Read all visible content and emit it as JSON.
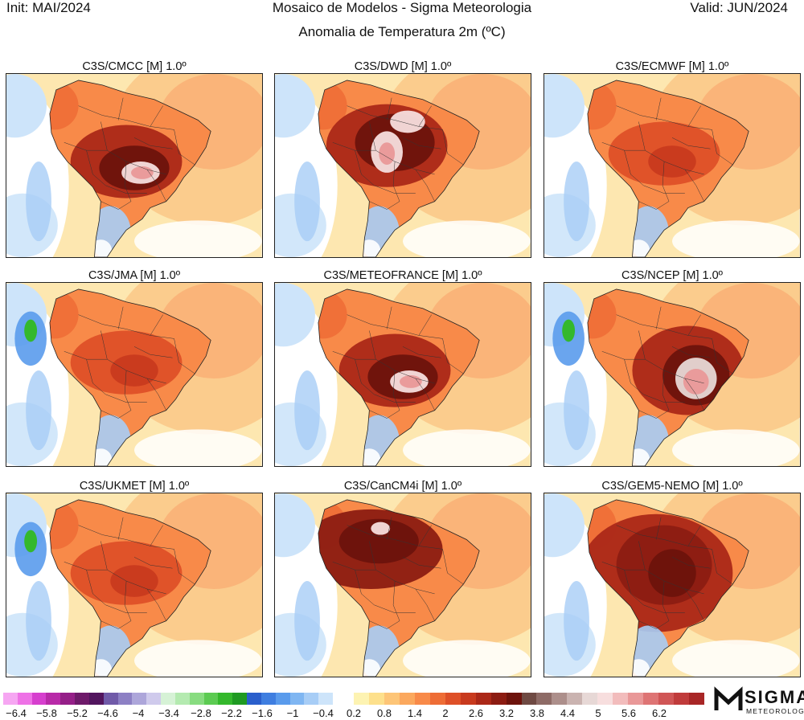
{
  "header": {
    "init": "Init: MAI/2024",
    "title": "Mosaico de Modelos - Sigma Meteorologia",
    "valid": "Valid: JUN/2024",
    "subtitle": "Anomalia de Temperatura 2m (ºC)"
  },
  "panels": [
    {
      "title": "C3S/CMCC [M] 1.0º",
      "peak": "southcentral"
    },
    {
      "title": "C3S/DWD [M] 1.0º",
      "peak": "north"
    },
    {
      "title": "C3S/ECMWF [M] 1.0º",
      "peak": "mild"
    },
    {
      "title": "C3S/JMA [M] 1.0º",
      "peak": "mild",
      "pacific": "cool"
    },
    {
      "title": "C3S/METEOFRANCE [M] 1.0º",
      "peak": "southcentral"
    },
    {
      "title": "C3S/NCEP [M] 1.0º",
      "peak": "east",
      "pacific": "cool"
    },
    {
      "title": "C3S/UKMET [M] 1.0º",
      "peak": "mild",
      "pacific": "cool"
    },
    {
      "title": "C3S/CanCM4i [M] 1.0º",
      "peak": "amazon"
    },
    {
      "title": "C3S/GEM5-NEMO [M] 1.0º",
      "peak": "broad"
    }
  ],
  "colorbar": {
    "cold": [
      "#f6a6f2",
      "#ee72e6",
      "#d63fce",
      "#b82aa8",
      "#951f88",
      "#6e1a6a",
      "#52155e",
      "#705aa8",
      "#8d80c4",
      "#ada6da",
      "#cfcaec",
      "#d6f2d6",
      "#b4eab0",
      "#88dc80",
      "#5ccb52",
      "#34b82c",
      "#1f9a22",
      "#2a5fcc",
      "#3f7ee0",
      "#5a9bec",
      "#7fb6f2",
      "#a7cdf6",
      "#cde4fa"
    ],
    "warm": [
      "#fdf3b2",
      "#fde08c",
      "#fdc577",
      "#fba85e",
      "#f88a49",
      "#ee6d36",
      "#de5028",
      "#c83a1e",
      "#ab2818",
      "#8c1c12",
      "#6d130c",
      "#6f4a43",
      "#8e6b66",
      "#ad8f8b",
      "#cab3b0",
      "#e7d8d6",
      "#f7dede",
      "#f2bcbc",
      "#e99898",
      "#de7474",
      "#d05656",
      "#c03b3b",
      "#a82626"
    ],
    "labels": [
      "−6.4",
      "−5.8",
      "−5.2",
      "−4.6",
      "−4",
      "−3.4",
      "−2.8",
      "−2.2",
      "−1.6",
      "−1",
      "−0.4",
      "0.2",
      "0.8",
      "1.4",
      "2",
      "2.6",
      "3.2",
      "3.8",
      "4.4",
      "5",
      "5.6",
      "6.2"
    ]
  },
  "logo": {
    "word": "SIGMA",
    "sub": "METEOROLOGIA"
  }
}
